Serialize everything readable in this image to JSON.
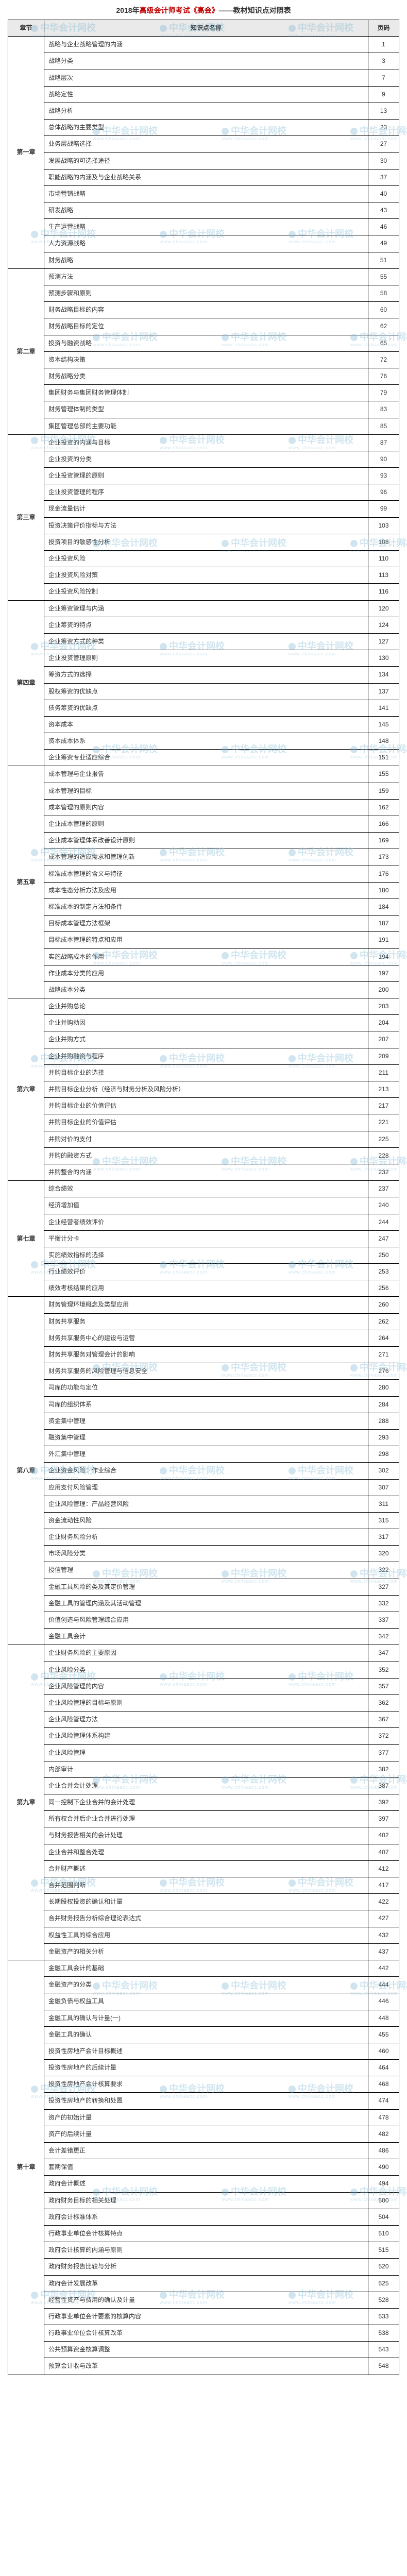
{
  "title": {
    "prefix": "2018年",
    "highlight": "高级会计师考试《高会》",
    "suffix": "——教材知识点对照表"
  },
  "columns": {
    "chapter": "章节",
    "name": "知识点名称",
    "page": "页码"
  },
  "watermark": {
    "text": "中华会计网校",
    "sub": "www.chinaacc.com"
  },
  "chapters": [
    {
      "label": "第一章",
      "rows": [
        [
          "战略与企业战略管理的内涵",
          "1"
        ],
        [
          "战略分类",
          "3"
        ],
        [
          "战略层次",
          "7"
        ],
        [
          "战略定性",
          "9"
        ],
        [
          "战略分析",
          "13"
        ],
        [
          "总体战略的主要类型",
          "23"
        ],
        [
          "业务层战略选择",
          "27"
        ],
        [
          "发展战略的可选择途径",
          "30"
        ],
        [
          "职能战略的内涵及与企业战略关系",
          "37"
        ],
        [
          "市场营销战略",
          "40"
        ],
        [
          "研发战略",
          "43"
        ],
        [
          "生产运营战略",
          "46"
        ],
        [
          "人力资源战略",
          "49"
        ],
        [
          "财务战略",
          "51"
        ]
      ]
    },
    {
      "label": "第二章",
      "rows": [
        [
          "预测方法",
          "55"
        ],
        [
          "预测步骤和原则",
          "58"
        ],
        [
          "财务战略目标的内容",
          "60"
        ],
        [
          "财务战略目标的定位",
          "62"
        ],
        [
          "投资与融资战略",
          "65"
        ],
        [
          "资本结构决策",
          "72"
        ],
        [
          "财务战略分类",
          "76"
        ],
        [
          "集团财务与集团财务管理体制",
          "79"
        ],
        [
          "财务管理体制的类型",
          "83"
        ],
        [
          "集团管理总部的主要功能",
          "85"
        ]
      ]
    },
    {
      "label": "第三章",
      "rows": [
        [
          "企业投资的内涵与目标",
          "87"
        ],
        [
          "企业投资的分类",
          "90"
        ],
        [
          "企业投资管理的原则",
          "93"
        ],
        [
          "企业投资管理的程序",
          "96"
        ],
        [
          "现金流量估计",
          "99"
        ],
        [
          "投资决策评价指标与方法",
          "103"
        ],
        [
          "投资项目的敏感性分析",
          "108"
        ],
        [
          "企业投资风险",
          "110"
        ],
        [
          "企业投资风险对策",
          "113"
        ],
        [
          "企业投资风险控制",
          "116"
        ]
      ]
    },
    {
      "label": "第四章",
      "rows": [
        [
          "企业筹资管理与内涵",
          "120"
        ],
        [
          "企业筹资的特点",
          "124"
        ],
        [
          "企业筹资方式的种类",
          "127"
        ],
        [
          "企业投资管理原则",
          "130"
        ],
        [
          "筹资方式的选择",
          "134"
        ],
        [
          "股权筹资的优缺点",
          "137"
        ],
        [
          "债务筹资的优缺点",
          "141"
        ],
        [
          "资本成本",
          "145"
        ],
        [
          "资本成本体系",
          "148"
        ],
        [
          "企业筹资专业适应综合",
          "151"
        ]
      ]
    },
    {
      "label": "第五章",
      "rows": [
        [
          "成本管理与企业报告",
          "155"
        ],
        [
          "成本管理的目标",
          "159"
        ],
        [
          "成本管理的原则内容",
          "162"
        ],
        [
          "企业成本管理的原则",
          "166"
        ],
        [
          "企业成本管理体系改善设计原则",
          "169"
        ],
        [
          "成本管理的适应需求和管理创新",
          "173"
        ],
        [
          "标准成本管理的含义与特征",
          "176"
        ],
        [
          "成本性态分析方法及应用",
          "180"
        ],
        [
          "标准成本的制定方法和条件",
          "184"
        ],
        [
          "目标成本管理方法框架",
          "187"
        ],
        [
          "目标成本管理的特点和应用",
          "191"
        ],
        [
          "实施战略成本的作用",
          "194"
        ],
        [
          "作业成本分类的应用",
          "197"
        ],
        [
          "战略成本分类",
          "200"
        ]
      ]
    },
    {
      "label": "第六章",
      "rows": [
        [
          "企业并购总论",
          "203"
        ],
        [
          "企业并购动因",
          "204"
        ],
        [
          "企业并购方式",
          "207"
        ],
        [
          "企业并购融资与程序",
          "209"
        ],
        [
          "并购目标企业的选择",
          "211"
        ],
        [
          "并购目标企业分析（经济与财务分析及风险分析）",
          "213"
        ],
        [
          "并购目标企业的价值评估",
          "217"
        ],
        [
          "并购目标企业的价值评估",
          "221"
        ],
        [
          "并购对价的支付",
          "225"
        ],
        [
          "并购的融资方式",
          "228"
        ],
        [
          "并购整合的内涵",
          "232"
        ]
      ]
    },
    {
      "label": "第七章",
      "rows": [
        [
          "综合绩效",
          "237"
        ],
        [
          "经济增加值",
          "240"
        ],
        [
          "企业经营者绩效评价",
          "244"
        ],
        [
          "平衡计分卡",
          "247"
        ],
        [
          "实施绩效指标的选择",
          "250"
        ],
        [
          "行业绩效评价",
          "253"
        ],
        [
          "绩效考核结果的应用",
          "256"
        ]
      ]
    },
    {
      "label": "第八章",
      "rows": [
        [
          "财务管理环境概念及类型应用",
          "260"
        ],
        [
          "财务共享服务",
          "262"
        ],
        [
          "财务共享服务中心的建设与运营",
          "264"
        ],
        [
          "财务共享服务对管理会计的影响",
          "271"
        ],
        [
          "财务共享服务的风险管理与信息安全",
          "276"
        ],
        [
          "司库的功能与定位",
          "280"
        ],
        [
          "司库的组织体系",
          "284"
        ],
        [
          "资金集中管理",
          "288"
        ],
        [
          "融资集中管理",
          "293"
        ],
        [
          "外汇集中管理",
          "298"
        ],
        [
          "企业资金风险：作业综合",
          "302"
        ],
        [
          "应用支付风险管理",
          "307"
        ],
        [
          "企业风险管理：产品经营风险",
          "311"
        ],
        [
          "资金流动性风险",
          "315"
        ],
        [
          "企业财务风险分析",
          "317"
        ],
        [
          "市场风险分类",
          "320"
        ],
        [
          "授信管理",
          "322"
        ],
        [
          "金融工具风险的类及其定价管理",
          "327"
        ],
        [
          "金融工具的管理内涵及其活动管理",
          "332"
        ],
        [
          "价值创造与风险管理综合应用",
          "337"
        ],
        [
          "金融工具会计",
          "342"
        ]
      ]
    },
    {
      "label": "第九章",
      "rows": [
        [
          "企业财务风险的主要原因",
          "347"
        ],
        [
          "企业风险分类",
          "352"
        ],
        [
          "企业风险管理的内容",
          "357"
        ],
        [
          "企业风险管理的目标与原则",
          "362"
        ],
        [
          "企业风险管理方法",
          "367"
        ],
        [
          "企业风险管理体系构建",
          "372"
        ],
        [
          "企业风险管理",
          "377"
        ],
        [
          "内部审计",
          "382"
        ],
        [
          "企业合并会计处理",
          "387"
        ],
        [
          "同一控制下企业合并的会计处理",
          "392"
        ],
        [
          "所有权合并后企业合并进行处理",
          "397"
        ],
        [
          "与财务报告相关的会计处理",
          "402"
        ],
        [
          "企业合并和整合处理",
          "407"
        ],
        [
          "合并财产概述",
          "412"
        ],
        [
          "合并范围判断",
          "417"
        ],
        [
          "长期股权投资的确认和计量",
          "422"
        ],
        [
          "合并财务报告分析综合理论表达式",
          "427"
        ],
        [
          "权益性工具的综合应用",
          "432"
        ],
        [
          "金融资产的相关分析",
          "437"
        ]
      ]
    },
    {
      "label": "第十章",
      "rows": [
        [
          "金融工具会计的基础",
          "442"
        ],
        [
          "金融资产的分类",
          "444"
        ],
        [
          "金融负债与权益工具",
          "446"
        ],
        [
          "金融工具的确认与计量(一)",
          "448"
        ],
        [
          "金融工具的确认",
          "455"
        ],
        [
          "投资性房地产会计目标概述",
          "460"
        ],
        [
          "投资性房地产的后续计量",
          "464"
        ],
        [
          "投资性房地产会计核算要求",
          "468"
        ],
        [
          "投资性房地产的转换和处置",
          "474"
        ],
        [
          "资产的初始计量",
          "478"
        ],
        [
          "资产的后续计量",
          "482"
        ],
        [
          "会计差错更正",
          "486"
        ],
        [
          "套期保值",
          "490"
        ],
        [
          "政府会计概述",
          "494"
        ],
        [
          "政府财务目标的相关处理",
          "500"
        ],
        [
          "政府会计标准体系",
          "504"
        ],
        [
          "行政事业单位会计核算特点",
          "510"
        ],
        [
          "政府会计核算的内涵与原则",
          "515"
        ],
        [
          "政府财务报告比较与分析",
          "520"
        ],
        [
          "政府会计发展改革",
          "525"
        ],
        [
          "经营性资产与费用的确认及计量",
          "528"
        ],
        [
          "行政事业单位会计要素的核算内容",
          "533"
        ],
        [
          "行政事业单位会计核算改革",
          "538"
        ],
        [
          "公共预算资金核算调整",
          "543"
        ],
        [
          "预算会计收与改革",
          "548"
        ]
      ]
    }
  ]
}
